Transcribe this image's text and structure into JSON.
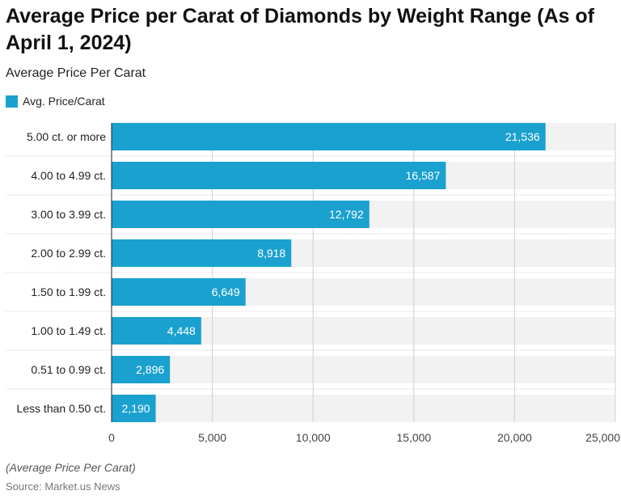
{
  "title": "Average Price per Carat of Diamonds by Weight Range (As of April 1, 2024)",
  "subtitle": "Average Price Per Carat",
  "note": "(Average Price Per Carat)",
  "source": "Source: Market.us News",
  "chart_data": {
    "type": "bar",
    "orientation": "horizontal",
    "categories": [
      "5.00 ct. or more",
      "4.00 to 4.99 ct.",
      "3.00 to 3.99 ct.",
      "2.00 to 2.99 ct.",
      "1.50 to 1.99 ct.",
      "1.00 to 1.49 ct.",
      "0.51 to 0.99 ct.",
      "Less than 0.50 ct."
    ],
    "series": [
      {
        "name": "Avg. Price/Carat",
        "values": [
          21536,
          16587,
          12792,
          8918,
          6649,
          4448,
          2896,
          2190
        ],
        "color": "#1ba1cf"
      }
    ],
    "data_labels": [
      "21,536",
      "16,587",
      "12,792",
      "8,918",
      "6,649",
      "4,448",
      "2,896",
      "2,190"
    ],
    "xlim": [
      0,
      25000
    ],
    "x_ticks": [
      0,
      5000,
      10000,
      15000,
      20000,
      25000
    ],
    "x_tick_labels": [
      "0",
      "5,000",
      "10,000",
      "15,000",
      "20,000",
      "25,000"
    ],
    "grid": true,
    "legend": "top-left"
  }
}
